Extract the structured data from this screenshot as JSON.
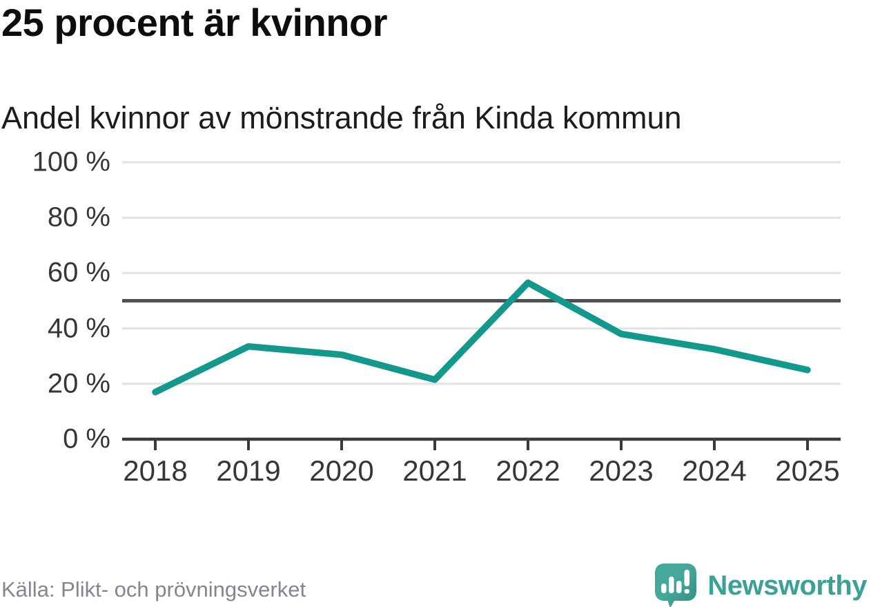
{
  "title": "25 procent är kvinnor",
  "subtitle": "Andel kvinnor av mönstrande från Kinda kommun",
  "source": "Källa: Plikt- och prövningsverket",
  "logo": {
    "text": "Newsworthy",
    "icon": "newsworthy-speech-bubble-bar-chart-icon"
  },
  "colors": {
    "accent": "#12998c",
    "reference_line": "#4f4f55",
    "grid": "#e2e2e2",
    "axis": "#3a3a3a",
    "tick_text": "#363636",
    "title_text": "#0d0d0d",
    "muted_text": "#85858b",
    "logo_teal": "#41a296",
    "logo_teal_dark": "#338c82"
  },
  "chart_data": {
    "type": "line",
    "title": "25 procent är kvinnor",
    "subtitle": "Andel kvinnor av mönstrande från Kinda kommun",
    "x": [
      2018,
      2019,
      2020,
      2021,
      2022,
      2023,
      2024,
      2025
    ],
    "series": [
      {
        "name": "Andel kvinnor av mönstrande",
        "values": [
          17,
          33.5,
          30.5,
          21.5,
          56.5,
          38,
          32.5,
          25
        ]
      }
    ],
    "xlabel": "",
    "ylabel": "",
    "ylim": [
      0,
      100
    ],
    "y_ticks": [
      0,
      20,
      40,
      60,
      80,
      100
    ],
    "y_tick_suffix": " %",
    "reference_line": 50,
    "grid": true,
    "legend": false
  }
}
